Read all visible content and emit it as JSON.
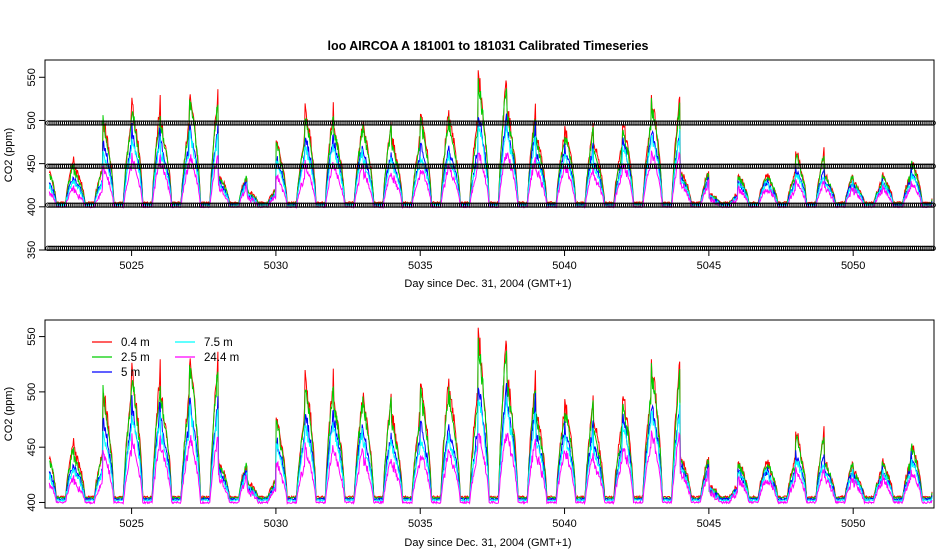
{
  "figure_title": "loo   AIRCOA  A    181001  to  181031   Calibrated Timeseries",
  "colors": {
    "0.4 m": "#ff0000",
    "2.5 m": "#00cd00",
    "5 m": "#0000ff",
    "7.5 m": "#00ffff",
    "24.4 m": "#ff00ff",
    "calibration": "#000000"
  },
  "chart_data": [
    {
      "type": "scatter",
      "title": "loo   AIRCOA  A    181001  to  181031   Calibrated Timeseries",
      "xlabel": "Day since Dec. 31, 2004 (GMT+1)",
      "ylabel": "CO2 (ppm)",
      "xlim": [
        5022,
        5052.8
      ],
      "ylim": [
        350,
        570
      ],
      "xticks": [
        5025,
        5030,
        5035,
        5040,
        5045,
        5050
      ],
      "yticks": [
        350,
        400,
        450,
        500,
        550
      ],
      "grid": false,
      "legend": "none",
      "series": [
        {
          "name": "",
          "marker": "circle",
          "x_range": [
            5022.1,
            5052.8
          ],
          "y": 497
        },
        {
          "name": "",
          "marker": "circle",
          "x_range": [
            5022.1,
            5052.8
          ],
          "y": 447
        },
        {
          "name": "",
          "marker": "circle",
          "x_range": [
            5022.1,
            5052.8
          ],
          "y": 402
        },
        {
          "name": "",
          "marker": "circle",
          "x_range": [
            5022.1,
            5052.8
          ],
          "y": 352
        }
      ],
      "line_series_same_as_panel_2": true
    },
    {
      "type": "line",
      "title": "",
      "xlabel": "Day since Dec. 31, 2004 (GMT+1)",
      "ylabel": "CO2 (ppm)",
      "xlim": [
        5022,
        5052.8
      ],
      "ylim": [
        395,
        565
      ],
      "xticks": [
        5025,
        5030,
        5035,
        5040,
        5045,
        5050
      ],
      "yticks": [
        400,
        450,
        500,
        550
      ],
      "grid": false,
      "legend": "top-left",
      "legend_entries": [
        "0.4 m",
        "2.5 m",
        "5 m",
        "7.5 m",
        "24.4 m"
      ],
      "x": [
        5022,
        5023,
        5024,
        5025,
        5026,
        5027,
        5028,
        5029,
        5030,
        5031,
        5032,
        5033,
        5034,
        5035,
        5036,
        5037,
        5038,
        5039,
        5040,
        5041,
        5042,
        5043,
        5044,
        5045,
        5046,
        5047,
        5048,
        5049,
        5050,
        5051,
        5052
      ],
      "series": [
        {
          "name": "0.4 m",
          "daily_peak": [
            460,
            450,
            510,
            530,
            505,
            540,
            440,
            420,
            485,
            525,
            500,
            505,
            485,
            520,
            510,
            565,
            525,
            490,
            500,
            480,
            510,
            540,
            445,
            415,
            440,
            440,
            470,
            440,
            430,
            440,
            460
          ],
          "baseline": 405
        },
        {
          "name": "2.5 m",
          "daily_peak": [
            455,
            445,
            505,
            520,
            500,
            535,
            438,
            418,
            480,
            515,
            495,
            500,
            480,
            510,
            500,
            560,
            515,
            485,
            495,
            470,
            500,
            530,
            442,
            413,
            438,
            438,
            465,
            438,
            428,
            438,
            458
          ],
          "baseline": 404
        },
        {
          "name": "5 m",
          "daily_peak": [
            440,
            435,
            480,
            495,
            478,
            500,
            432,
            415,
            462,
            490,
            478,
            468,
            460,
            475,
            470,
            515,
            500,
            470,
            475,
            455,
            485,
            500,
            436,
            412,
            432,
            430,
            448,
            432,
            424,
            432,
            445
          ],
          "baseline": 403
        },
        {
          "name": "7.5 m",
          "daily_peak": [
            435,
            430,
            470,
            485,
            470,
            490,
            430,
            414,
            458,
            480,
            470,
            460,
            455,
            465,
            462,
            505,
            490,
            462,
            468,
            450,
            478,
            492,
            434,
            411,
            430,
            428,
            442,
            430,
            423,
            430,
            440
          ],
          "baseline": 402
        },
        {
          "name": "24.4 m",
          "daily_peak": [
            425,
            420,
            450,
            460,
            455,
            465,
            425,
            412,
            440,
            455,
            450,
            445,
            440,
            450,
            448,
            470,
            465,
            448,
            452,
            440,
            458,
            470,
            430,
            410,
            425,
            422,
            432,
            424,
            420,
            424,
            432
          ],
          "baseline": 400
        }
      ]
    }
  ]
}
